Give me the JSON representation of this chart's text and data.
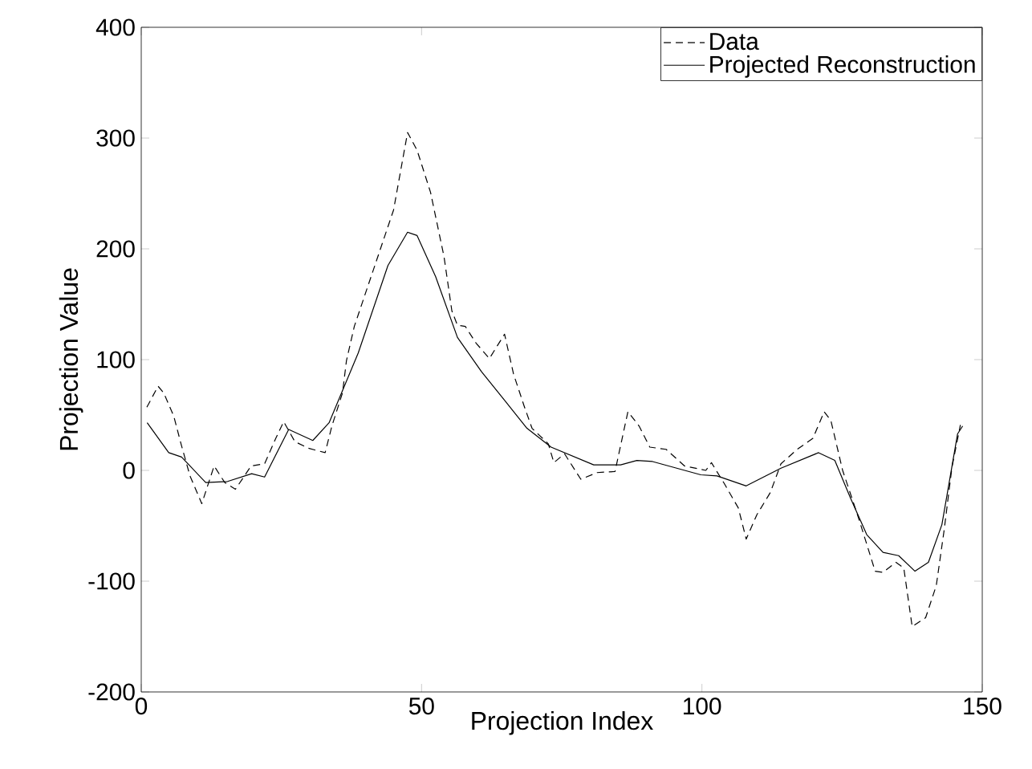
{
  "chart_data": {
    "type": "line",
    "xlabel": "Projection Index",
    "ylabel": "Projection Value",
    "xlim": [
      0,
      150
    ],
    "ylim": [
      -200,
      400
    ],
    "xticks": [
      0,
      50,
      100,
      150
    ],
    "yticks": [
      -200,
      -100,
      0,
      100,
      200,
      300,
      400
    ],
    "legend": "top right",
    "grid": false,
    "marker": "none",
    "series": [
      {
        "name": "Data",
        "color": "#000000",
        "line_style": "dashed",
        "x": [
          1,
          3,
          4,
          5.8,
          7.2,
          8.7,
          10.8,
          13,
          14.9,
          16.8,
          19.6,
          22,
          24,
          25.4,
          27.4,
          29.8,
          32.8,
          34,
          35.9,
          36.6,
          38,
          42,
          45,
          47.5,
          49.2,
          51.6,
          54,
          55.4,
          56.4,
          57.8,
          59.7,
          62.1,
          64.8,
          66.4,
          68.3,
          69.7,
          72.6,
          73.6,
          75.5,
          78.4,
          81.3,
          84.5,
          86.8,
          88.8,
          90.7,
          93.6,
          96.9,
          100.7,
          101.7,
          104,
          106.5,
          107.9,
          109.8,
          112.2,
          114.1,
          117,
          119.8,
          121.8,
          123,
          125.1,
          128,
          130.9,
          132.3,
          134.6,
          136,
          137.5,
          139.9,
          141.8,
          143.2,
          144.6,
          146.1
        ],
        "values": [
          57,
          76,
          70,
          49,
          22,
          -5,
          -30,
          4,
          -11,
          -17,
          4,
          6,
          29,
          44,
          26,
          20,
          16,
          40,
          70,
          99,
          130,
          190,
          235,
          305,
          289,
          251,
          193,
          144,
          131,
          130,
          115,
          101,
          123,
          87,
          58,
          38,
          24,
          7,
          15,
          -8,
          -2,
          -1,
          53,
          40,
          21,
          19,
          4,
          0,
          7,
          -12,
          -34,
          -62,
          -40,
          -20,
          6,
          19,
          29,
          53,
          45,
          0,
          -44,
          -91,
          -92,
          -83,
          -88,
          -141,
          -133,
          -104,
          -54,
          3,
          41
        ]
      },
      {
        "name": "Projected Reconstruction",
        "color": "#000000",
        "line_style": "solid",
        "x": [
          1.06,
          4.9,
          7.2,
          11.5,
          15.4,
          19.7,
          22,
          26.3,
          30.6,
          33.5,
          38.7,
          44,
          47.5,
          49.2,
          52.5,
          56.4,
          60.7,
          65,
          68.8,
          73.1,
          80.7,
          85.5,
          88.4,
          91.2,
          99.8,
          102.7,
          107.9,
          114.1,
          120.8,
          123.7,
          126.5,
          129.4,
          132.3,
          135.1,
          138,
          140.4,
          142.8,
          145.6,
          146.5
        ],
        "values": [
          43,
          16,
          12,
          -11,
          -10,
          -3,
          -6,
          37,
          27,
          43,
          106,
          185,
          215,
          212,
          175,
          120,
          89,
          62,
          38,
          21,
          5,
          5,
          9,
          8,
          -4,
          -5,
          -14,
          2,
          16,
          9,
          -25,
          -58,
          -74,
          -77,
          -91,
          -83,
          -49,
          33,
          40
        ]
      }
    ]
  }
}
